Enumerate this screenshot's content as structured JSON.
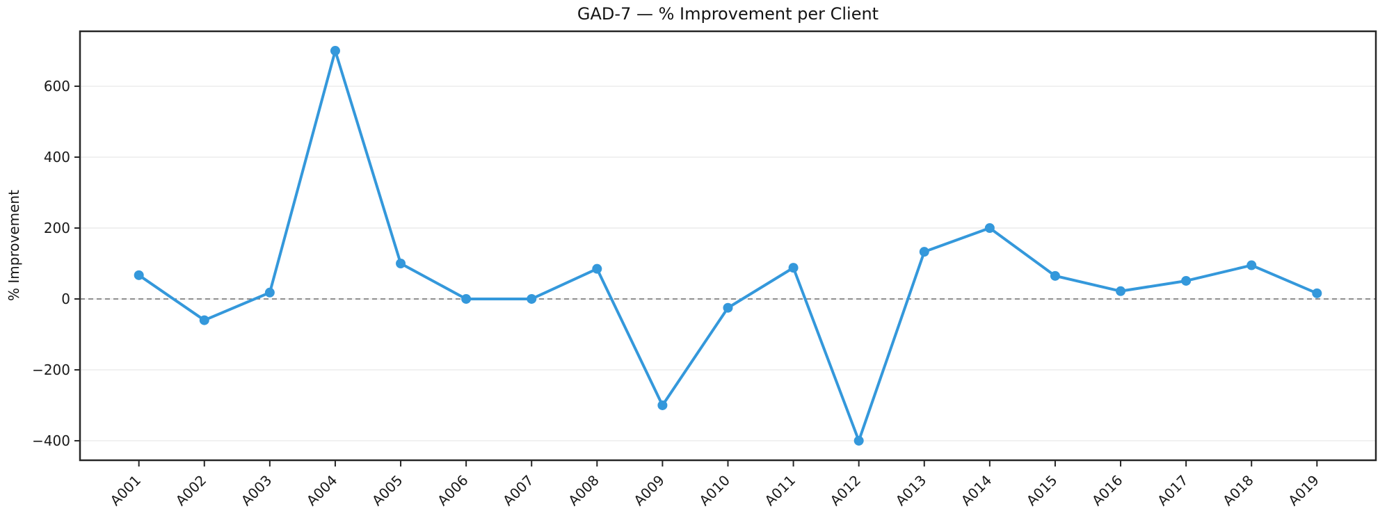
{
  "chart_data": {
    "type": "line",
    "title": "GAD-7 — % Improvement per Client",
    "ylabel": "% Improvement",
    "xlabel": "",
    "categories": [
      "A001",
      "A002",
      "A003",
      "A004",
      "A005",
      "A006",
      "A007",
      "A008",
      "A009",
      "A010",
      "A011",
      "A012",
      "A013",
      "A014",
      "A015",
      "A016",
      "A017",
      "A018",
      "A019"
    ],
    "series": [
      {
        "name": "% Improvement",
        "values": [
          67,
          -60,
          18,
          700,
          100,
          0,
          0,
          85,
          -300,
          -25,
          88,
          -400,
          133,
          200,
          65,
          22,
          51,
          95,
          16
        ]
      }
    ],
    "ylim": [
      -455,
      755
    ],
    "yticks": [
      -400,
      -200,
      0,
      200,
      400,
      600
    ],
    "ytick_labels": [
      "−400",
      "−200",
      "0",
      "200",
      "400",
      "600"
    ],
    "grid": "horizontal-light",
    "zero_baseline": "dashed",
    "legend_position": "none",
    "x_tick_rotation_deg": 45,
    "colors": {
      "line": "#3498db",
      "marker": "#3498db",
      "gridline": "#eaeaea",
      "zero_line": "#808080",
      "spine": "#262626",
      "text": "#191919",
      "background": "#ffffff"
    }
  }
}
